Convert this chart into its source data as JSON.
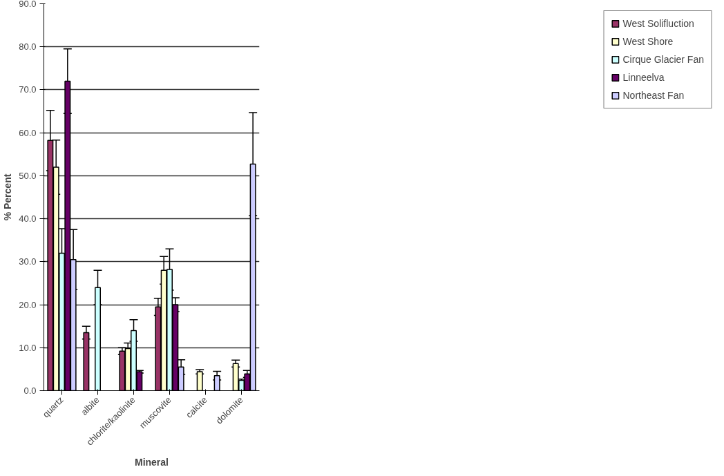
{
  "chart_data": {
    "type": "bar",
    "xlabel": "Mineral",
    "ylabel": "% Percent",
    "categories": [
      "quartz",
      "albite",
      "chlorite/kaolinite",
      "muscovite",
      "calcite",
      "dolomite"
    ],
    "series": [
      {
        "name": "West Solifluction",
        "color": "#993366",
        "values": [
          58.2,
          13.5,
          9.2,
          19.5,
          null,
          null
        ],
        "errors": [
          7,
          1.5,
          0.8,
          2,
          null,
          null
        ]
      },
      {
        "name": "West Shore",
        "color": "#ffffcc",
        "values": [
          52,
          null,
          9.8,
          28,
          4.4,
          6.3
        ],
        "errors": [
          6.3,
          null,
          1.3,
          3.2,
          0.5,
          0.8
        ]
      },
      {
        "name": "Cirque Glacier Fan",
        "color": "#ccffff",
        "values": [
          32,
          24,
          14,
          28.2,
          null,
          2.4
        ],
        "errors": [
          5.7,
          4,
          2.5,
          4.8,
          null,
          0.3
        ]
      },
      {
        "name": "Linneelva",
        "color": "#660066",
        "values": [
          72,
          null,
          4.4,
          20,
          null,
          3.9
        ],
        "errors": [
          7.5,
          null,
          0.3,
          1.6,
          null,
          0.8
        ]
      },
      {
        "name": "Northeast Fan",
        "color": "#ccccff",
        "values": [
          30.5,
          null,
          null,
          5.5,
          3.5,
          52.7
        ],
        "errors": [
          7,
          null,
          null,
          1.7,
          1,
          12
        ]
      }
    ],
    "ylim": [
      0,
      90
    ],
    "yticks": [
      {
        "value": 0,
        "label": "0.0"
      },
      {
        "value": 10,
        "label": "10.0"
      },
      {
        "value": 20,
        "label": "20.0"
      },
      {
        "value": 30,
        "label": "30.0"
      },
      {
        "value": 40,
        "label": "40.0"
      },
      {
        "value": 50,
        "label": "50.0"
      },
      {
        "value": 60,
        "label": "60.0"
      },
      {
        "value": 70,
        "label": "70.0"
      },
      {
        "value": 80,
        "label": "80.0"
      },
      {
        "value": 90,
        "label": "90.0"
      }
    ],
    "grid": "y",
    "legend": "right"
  }
}
